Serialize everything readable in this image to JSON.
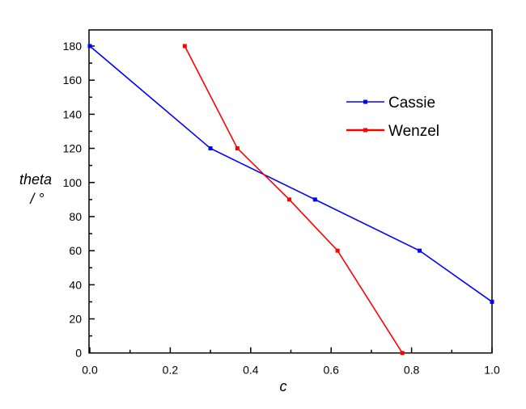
{
  "chart_data": {
    "type": "line",
    "title": "",
    "xlabel": "c",
    "ylabel_line1": "theta",
    "ylabel_line2": "/ °",
    "xlim": [
      0,
      1.0
    ],
    "ylim": [
      0,
      180
    ],
    "xticks": [
      "0.0",
      "0.2",
      "0.4",
      "0.6",
      "0.8",
      "1.0"
    ],
    "yticks": [
      "0",
      "20",
      "40",
      "60",
      "80",
      "100",
      "120",
      "140",
      "160",
      "180"
    ],
    "grid": false,
    "legend_position": "upper-right",
    "series": [
      {
        "name": "Cassie",
        "color": "#0000ff",
        "x": [
          0.0,
          0.3,
          0.56,
          0.82,
          1.0
        ],
        "y": [
          180,
          120,
          90,
          60,
          30
        ]
      },
      {
        "name": "Wenzel",
        "color": "#ff0000",
        "x": [
          0.236,
          0.367,
          0.496,
          0.616,
          0.777
        ],
        "y": [
          180,
          120,
          90,
          60,
          0
        ]
      }
    ]
  }
}
